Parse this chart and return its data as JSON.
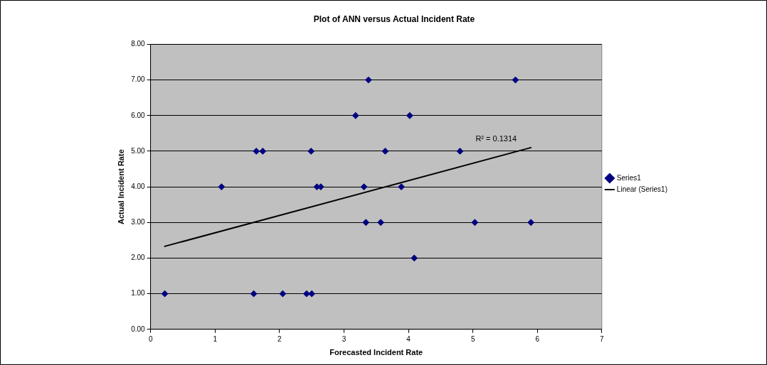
{
  "chart_data": {
    "type": "scatter",
    "title": "Plot of ANN versus Actual Incident Rate",
    "xlabel": "Forecasted Incident Rate",
    "ylabel": "Actual Incident Rate",
    "xlim": [
      0,
      7
    ],
    "xticks": [
      0,
      1,
      2,
      3,
      4,
      5,
      6,
      7
    ],
    "ylim": [
      0,
      8
    ],
    "yticks": [
      {
        "value": 0,
        "label": "0.00"
      },
      {
        "value": 1,
        "label": "1.00"
      },
      {
        "value": 2,
        "label": "2.00"
      },
      {
        "value": 3,
        "label": "3.00"
      },
      {
        "value": 4,
        "label": "4.00"
      },
      {
        "value": 5,
        "label": "5.00"
      },
      {
        "value": 6,
        "label": "6.00"
      },
      {
        "value": 7,
        "label": "7.00"
      },
      {
        "value": 8,
        "label": "8.00"
      }
    ],
    "grid": "y",
    "legend": "right",
    "marker": "diamond",
    "series": [
      {
        "name": "Series1",
        "type": "scatter",
        "color": "#000080",
        "x": [
          0.22,
          1.6,
          2.05,
          2.42,
          2.5,
          3.38,
          5.66,
          3.18,
          4.02,
          1.64,
          1.74,
          2.49,
          3.64,
          4.8,
          1.1,
          2.58,
          2.64,
          3.31,
          3.89,
          3.34,
          3.57,
          5.03,
          5.9,
          4.09
        ],
        "values": [
          1,
          1,
          1,
          1,
          1,
          7,
          7,
          6,
          6,
          5,
          5,
          5,
          5,
          5,
          4,
          4,
          4,
          4,
          4,
          3,
          3,
          3,
          3,
          2
        ]
      },
      {
        "name": "Linear (Series1)",
        "type": "line",
        "color": "#000000",
        "marker": "none",
        "line_style": "solid",
        "x": [
          0.22,
          5.9
        ],
        "values": [
          2.33,
          5.1
        ]
      }
    ],
    "annotations": [
      "R² = 0.1314"
    ]
  }
}
